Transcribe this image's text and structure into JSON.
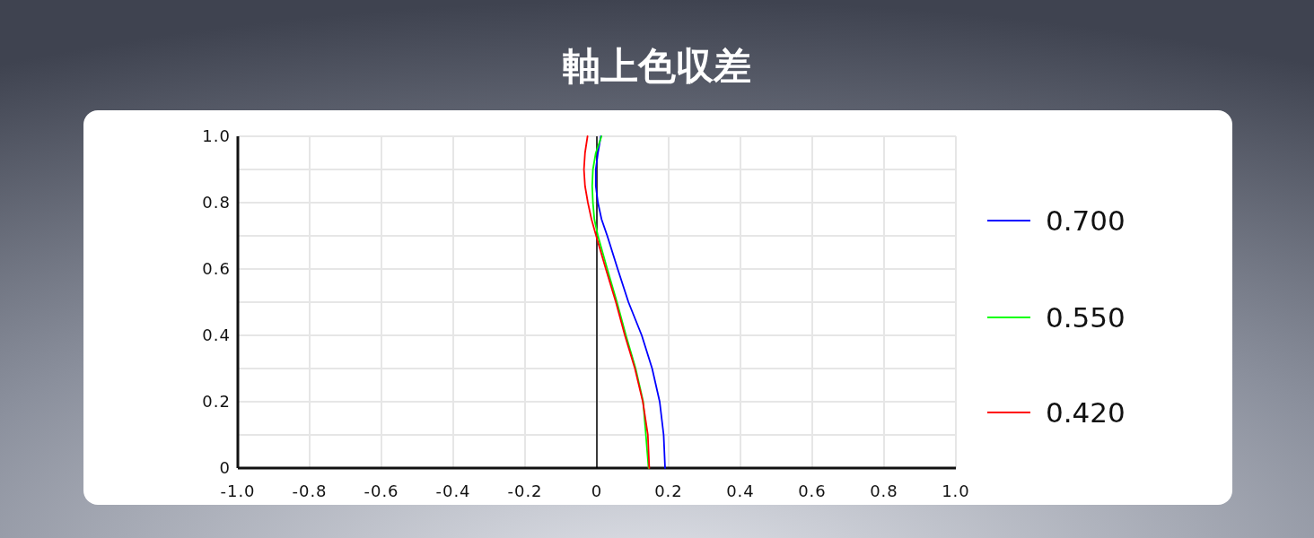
{
  "chart_data": {
    "type": "line",
    "title": "軸上色収差",
    "xlim": [
      -1,
      1
    ],
    "xticks": [
      {
        "value": -1,
        "label": "-1.0"
      },
      {
        "value": -0.8,
        "label": "-0.8"
      },
      {
        "value": -0.6,
        "label": "-0.6"
      },
      {
        "value": -0.4,
        "label": "-0.4"
      },
      {
        "value": -0.2,
        "label": "-0.2"
      },
      0,
      0.2,
      0.4,
      0.6,
      0.8,
      {
        "value": 1,
        "label": "1.0"
      }
    ],
    "ylim": [
      0,
      1
    ],
    "yticks": [
      0,
      {
        "value": 0.1,
        "label": null
      },
      0.2,
      {
        "value": 0.3,
        "label": null
      },
      0.4,
      {
        "value": 0.5,
        "label": null
      },
      0.6,
      {
        "value": 0.7,
        "label": null
      },
      0.8,
      {
        "value": 0.9,
        "label": null
      },
      {
        "value": 1,
        "label": "1.0"
      }
    ],
    "grid": true,
    "legend": "right",
    "line_style": "solid",
    "marker": "none",
    "ref_lines": [
      {
        "axis": "x",
        "value": 0,
        "color": "#000000"
      }
    ],
    "series": [
      {
        "name": "0.700",
        "color": "#0000ff",
        "x": [
          0.19,
          0.186,
          0.175,
          0.154,
          0.125,
          0.088,
          0.058,
          0.029,
          0.013,
          0.003,
          -0.003,
          -0.003,
          0.003,
          0.011
        ],
        "values": [
          0,
          0.1,
          0.2,
          0.3,
          0.4,
          0.5,
          0.6,
          0.7,
          0.75,
          0.8,
          0.85,
          0.9,
          0.95,
          1
        ]
      },
      {
        "name": "0.550",
        "color": "#00ff00",
        "x": [
          0.144,
          null,
          0.129,
          0.108,
          0.081,
          0.056,
          0.029,
          0.003,
          -0.007,
          -0.011,
          -0.013,
          -0.011,
          -0.003,
          0.013
        ],
        "values": [
          0,
          null,
          0.2,
          0.3,
          0.4,
          0.5,
          0.6,
          0.7,
          0.75,
          0.8,
          0.85,
          0.9,
          0.95,
          1
        ]
      },
      {
        "name": "0.420",
        "color": "#ff0000",
        "x": [
          0.146,
          0.142,
          0.128,
          0.106,
          0.078,
          0.053,
          0.025,
          -0.002,
          -0.015,
          -0.025,
          -0.033,
          -0.036,
          -0.033,
          -0.026
        ],
        "values": [
          0,
          0.1,
          0.2,
          0.3,
          0.4,
          0.5,
          0.6,
          0.7,
          0.75,
          0.8,
          0.85,
          0.9,
          0.95,
          1
        ]
      }
    ]
  }
}
